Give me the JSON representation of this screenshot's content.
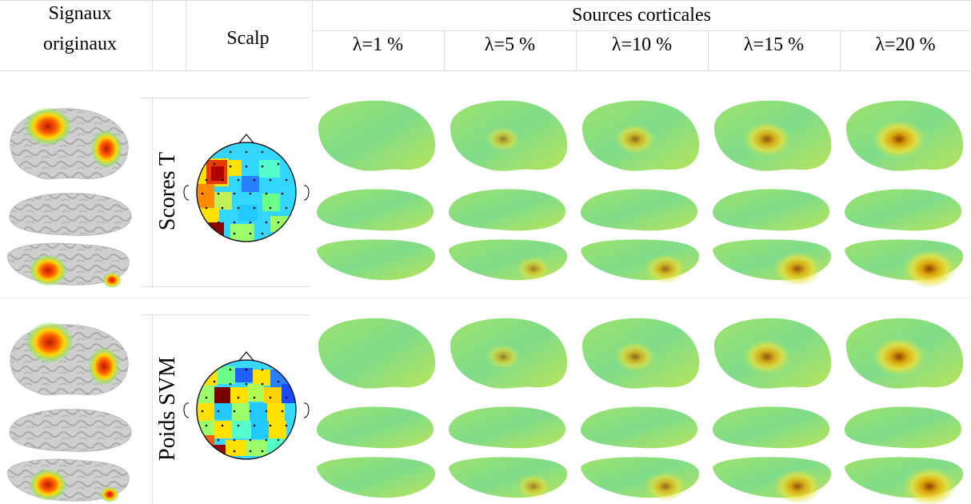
{
  "header": {
    "original_signals_line1": "Signaux",
    "original_signals_line2": "originaux",
    "scalp": "Scalp",
    "cortical_sources": "Sources corticales",
    "lambdas": [
      "λ=1 %",
      "λ=5 %",
      "λ=10 %",
      "λ=15 %",
      "λ=20 %"
    ]
  },
  "rows": [
    {
      "label": "Scores T"
    },
    {
      "label": "Poids SVM"
    }
  ],
  "colors": {
    "brain_gray": "#c9c9c9",
    "cortex_base": "#8fe07a",
    "hot": "#d44000",
    "scalp_outline": "#000000"
  }
}
